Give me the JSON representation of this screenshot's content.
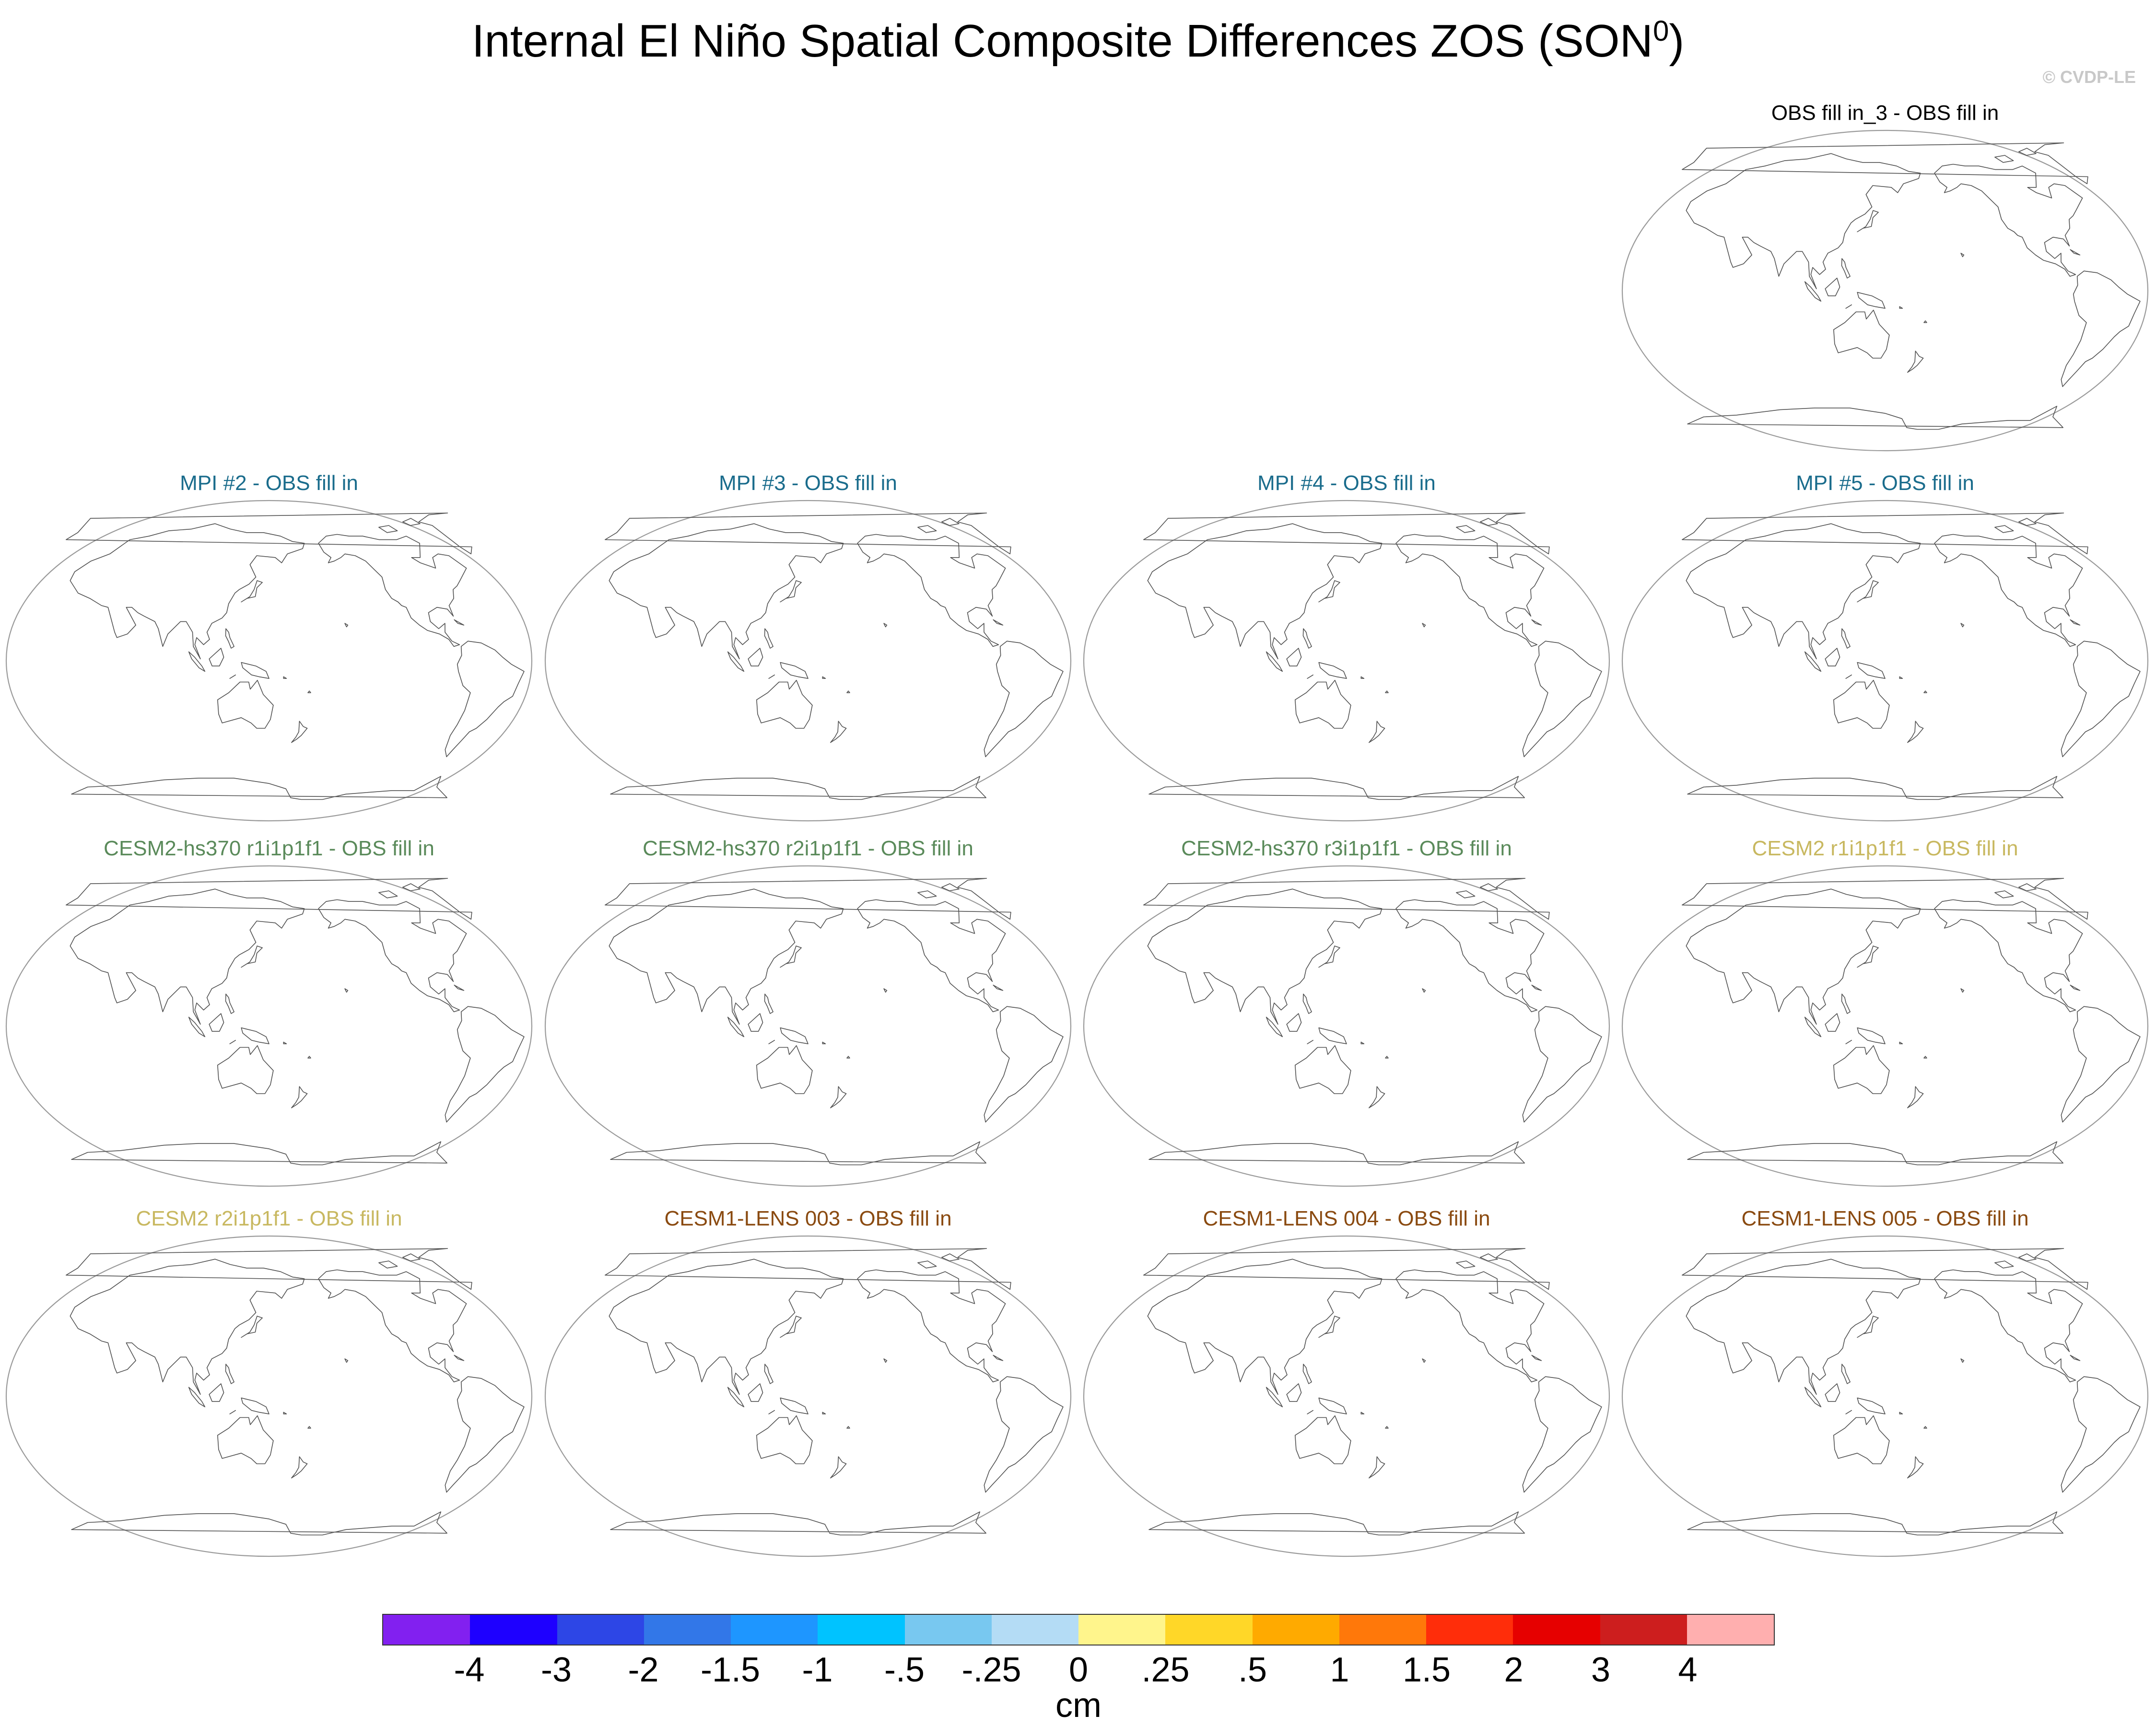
{
  "title": "Internal El Niño Spatial Composite Differences ZOS (SON",
  "title_superscript": "0",
  "title_suffix": ")",
  "watermark": "© CVDP-LE",
  "panels": [
    {
      "label": "OBS fill in_3 - OBS fill in",
      "color": "#000000"
    },
    {
      "label": "MPI #2 - OBS fill in",
      "color": "#1a6c8c"
    },
    {
      "label": "MPI #3 - OBS fill in",
      "color": "#1a6c8c"
    },
    {
      "label": "MPI #4 - OBS fill in",
      "color": "#1a6c8c"
    },
    {
      "label": "MPI #5 - OBS fill in",
      "color": "#1a6c8c"
    },
    {
      "label": "CESM2-hs370 r1i1p1f1 - OBS fill in",
      "color": "#5a8a5a"
    },
    {
      "label": "CESM2-hs370 r2i1p1f1 - OBS fill in",
      "color": "#5a8a5a"
    },
    {
      "label": "CESM2-hs370 r3i1p1f1 - OBS fill in",
      "color": "#5a8a5a"
    },
    {
      "label": "CESM2 r1i1p1f1 - OBS fill in",
      "color": "#c8b860"
    },
    {
      "label": "CESM2 r2i1p1f1 - OBS fill in",
      "color": "#c8b860"
    },
    {
      "label": "CESM1-LENS 003 - OBS fill in",
      "color": "#8a4a10"
    },
    {
      "label": "CESM1-LENS 004 - OBS fill in",
      "color": "#8a4a10"
    },
    {
      "label": "CESM1-LENS 005 - OBS fill in",
      "color": "#8a4a10"
    }
  ],
  "chart_data": {
    "type": "heatmap",
    "title": "Internal El Niño Spatial Composite Differences ZOS (SON0)",
    "projection": "Robinson, Pacific-centered",
    "variable": "ZOS",
    "season": "SON0",
    "units": "cm",
    "colorbar_levels": [
      "-4",
      "-3",
      "-2",
      "-1.5",
      "-1",
      "-.5",
      "-.25",
      "0",
      ".25",
      ".5",
      "1",
      "1.5",
      "2",
      "3",
      "4"
    ],
    "colorbar_colors": [
      "#8220f0",
      "#1e00ff",
      "#2d46e6",
      "#3277e8",
      "#1e96ff",
      "#00c3ff",
      "#78c8f0",
      "#b4dcf5",
      "#fff58c",
      "#ffd728",
      "#ffaa00",
      "#ff780a",
      "#ff2d0a",
      "#e60000",
      "#cd1e1e",
      "#ffafaf"
    ],
    "panel_values": "no shaded values (all panels blank)"
  }
}
